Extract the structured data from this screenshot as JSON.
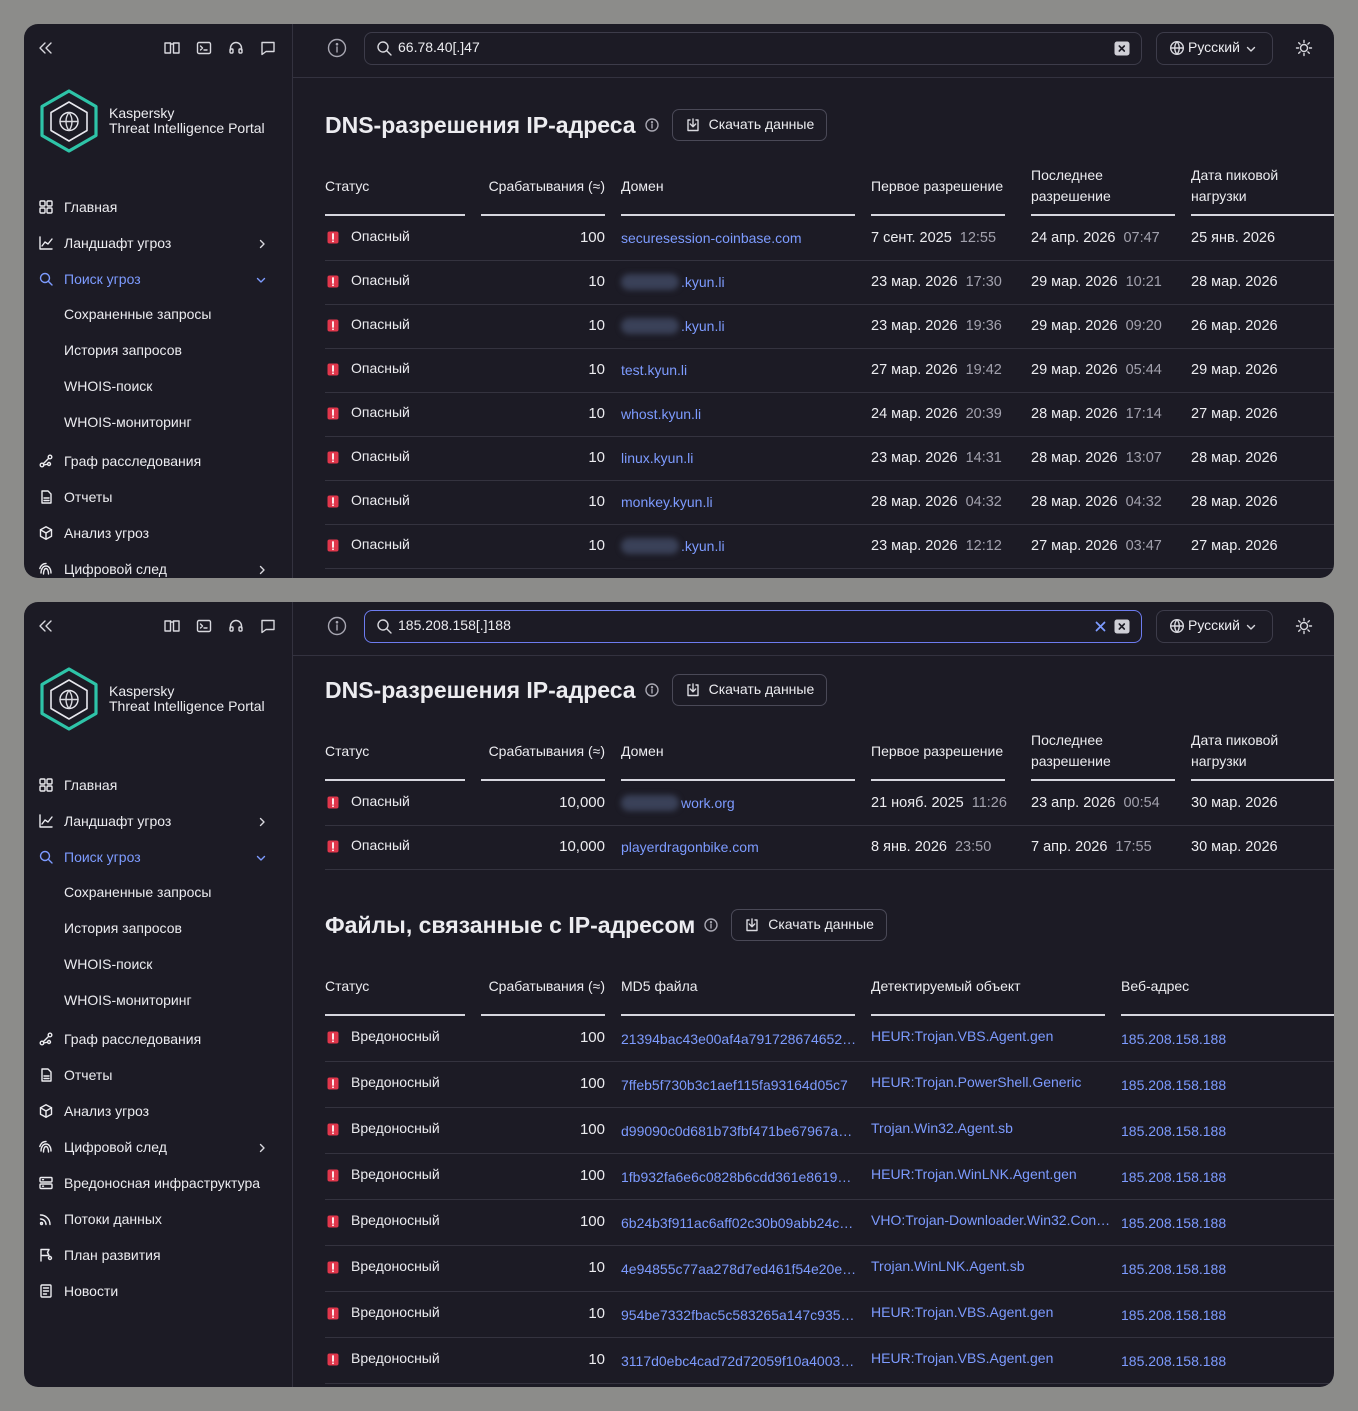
{
  "panels": [
    {
      "search": "66.78.40[.]47",
      "search_focused": false,
      "language": "Русский",
      "logo": {
        "line1": "Kaspersky",
        "line2": "Threat Intelligence Portal"
      },
      "nav": [
        {
          "label": "Главная"
        },
        {
          "label": "Ландшафт угроз",
          "expandable": true
        },
        {
          "label": "Поиск угроз",
          "active": true,
          "expanded": true,
          "children": [
            "Сохраненные запросы",
            "История запросов",
            "WHOIS-поиск",
            "WHOIS-мониторинг"
          ]
        },
        {
          "label": "Граф расследования"
        },
        {
          "label": "Отчеты"
        },
        {
          "label": "Анализ угроз"
        },
        {
          "label": "Цифровой след",
          "expandable": true
        }
      ],
      "dns": {
        "title": "DNS-разрешения IP-адреса",
        "download": "Скачать данные",
        "columns": [
          "Статус",
          "Срабатывания (≈)",
          "Домен",
          "Первое разрешение",
          "Последнее разрешение",
          "Дата пиковой нагрузки"
        ],
        "rows": [
          {
            "status": "Опасный",
            "hits": "100",
            "domain": "securesession-coinbase.com",
            "first": {
              "date": "7 сент. 2025",
              "time": "12:55"
            },
            "last": {
              "date": "24 апр. 2026",
              "time": "07:47"
            },
            "peak": "25 янв. 2026"
          },
          {
            "status": "Опасный",
            "hits": "10",
            "domain": ".kyun.li",
            "redacted": true,
            "first": {
              "date": "23 мар. 2026",
              "time": "17:30"
            },
            "last": {
              "date": "29 мар. 2026",
              "time": "10:21"
            },
            "peak": "28 мар. 2026"
          },
          {
            "status": "Опасный",
            "hits": "10",
            "domain": ".kyun.li",
            "redacted": true,
            "first": {
              "date": "23 мар. 2026",
              "time": "19:36"
            },
            "last": {
              "date": "29 мар. 2026",
              "time": "09:20"
            },
            "peak": "26 мар. 2026"
          },
          {
            "status": "Опасный",
            "hits": "10",
            "domain": "test.kyun.li",
            "first": {
              "date": "27 мар. 2026",
              "time": "19:42"
            },
            "last": {
              "date": "29 мар. 2026",
              "time": "05:44"
            },
            "peak": "29 мар. 2026"
          },
          {
            "status": "Опасный",
            "hits": "10",
            "domain": "whost.kyun.li",
            "first": {
              "date": "24 мар. 2026",
              "time": "20:39"
            },
            "last": {
              "date": "28 мар. 2026",
              "time": "17:14"
            },
            "peak": "27 мар. 2026"
          },
          {
            "status": "Опасный",
            "hits": "10",
            "domain": "linux.kyun.li",
            "first": {
              "date": "23 мар. 2026",
              "time": "14:31"
            },
            "last": {
              "date": "28 мар. 2026",
              "time": "13:07"
            },
            "peak": "28 мар. 2026"
          },
          {
            "status": "Опасный",
            "hits": "10",
            "domain": "monkey.kyun.li",
            "first": {
              "date": "28 мар. 2026",
              "time": "04:32"
            },
            "last": {
              "date": "28 мар. 2026",
              "time": "04:32"
            },
            "peak": "28 мар. 2026"
          },
          {
            "status": "Опасный",
            "hits": "10",
            "domain": ".kyun.li",
            "redacted": true,
            "first": {
              "date": "23 мар. 2026",
              "time": "12:12"
            },
            "last": {
              "date": "27 мар. 2026",
              "time": "03:47"
            },
            "peak": "27 мар. 2026"
          }
        ]
      }
    },
    {
      "search": "185.208.158[.]188",
      "search_focused": true,
      "language": "Русский",
      "logo": {
        "line1": "Kaspersky",
        "line2": "Threat Intelligence Portal"
      },
      "nav": [
        {
          "label": "Главная"
        },
        {
          "label": "Ландшафт угроз",
          "expandable": true
        },
        {
          "label": "Поиск угроз",
          "active": true,
          "expanded": true,
          "children": [
            "Сохраненные запросы",
            "История запросов",
            "WHOIS-поиск",
            "WHOIS-мониторинг"
          ]
        },
        {
          "label": "Граф расследования"
        },
        {
          "label": "Отчеты"
        },
        {
          "label": "Анализ угроз"
        },
        {
          "label": "Цифровой след",
          "expandable": true
        },
        {
          "label": "Вредоносная инфраструктура"
        },
        {
          "label": "Потоки данных"
        },
        {
          "label": "План развития"
        },
        {
          "label": "Новости"
        }
      ],
      "dns": {
        "title": "DNS-разрешения IP-адреса",
        "download": "Скачать данные",
        "columns": [
          "Статус",
          "Срабатывания (≈)",
          "Домен",
          "Первое разрешение",
          "Последнее разрешение",
          "Дата пиковой нагрузки"
        ],
        "rows": [
          {
            "status": "Опасный",
            "hits": "10,000",
            "domain": "work.org",
            "redacted": true,
            "first": {
              "date": "21 нояб. 2025",
              "time": "11:26"
            },
            "last": {
              "date": "23 апр. 2026",
              "time": "00:54"
            },
            "peak": "30 мар. 2026"
          },
          {
            "status": "Опасный",
            "hits": "10,000",
            "domain": "playerdragonbike.com",
            "first": {
              "date": "8 янв. 2026",
              "time": "23:50"
            },
            "last": {
              "date": "7 апр. 2026",
              "time": "17:55"
            },
            "peak": "30 мар. 2026"
          }
        ]
      },
      "files": {
        "title": "Файлы, связанные с IP-адресом",
        "download": "Скачать данные",
        "columns": [
          "Статус",
          "Срабатывания (≈)",
          "MD5 файла",
          "Детектируемый объект",
          "Веб-адрес"
        ],
        "rows": [
          {
            "status": "Вредоносный",
            "hits": "100",
            "md5": "21394bac43e00af4a791728674652…",
            "detect": "HEUR:Trojan.VBS.Agent.gen",
            "url": "185.208.158.188"
          },
          {
            "status": "Вредоносный",
            "hits": "100",
            "md5": "7ffeb5f730b3c1aef115fa93164d05c7",
            "detect": "HEUR:Trojan.PowerShell.Generic",
            "url": "185.208.158.188"
          },
          {
            "status": "Вредоносный",
            "hits": "100",
            "md5": "d99090c0d681b73fbf471be67967a…",
            "detect": "Trojan.Win32.Agent.sb",
            "url": "185.208.158.188"
          },
          {
            "status": "Вредоносный",
            "hits": "100",
            "md5": "1fb932fa6e6c0828b6cdd361e8619…",
            "detect": "HEUR:Trojan.WinLNK.Agent.gen",
            "url": "185.208.158.188"
          },
          {
            "status": "Вредоносный",
            "hits": "100",
            "md5": "6b24b3f911ac6aff02c30b09abb24c…",
            "detect": "VHO:Trojan-Downloader.Win32.Con…",
            "url": "185.208.158.188"
          },
          {
            "status": "Вредоносный",
            "hits": "10",
            "md5": "4e94855c77aa278d7ed461f54e20e…",
            "detect": "Trojan.WinLNK.Agent.sb",
            "url": "185.208.158.188"
          },
          {
            "status": "Вредоносный",
            "hits": "10",
            "md5": "954be7332fbac5c583265a147c935…",
            "detect": "HEUR:Trojan.VBS.Agent.gen",
            "url": "185.208.158.188"
          },
          {
            "status": "Вредоносный",
            "hits": "10",
            "md5": "3117d0ebc4cad72d72059f10a4003…",
            "detect": "HEUR:Trojan.VBS.Agent.gen",
            "url": "185.208.158.188"
          }
        ]
      }
    }
  ]
}
